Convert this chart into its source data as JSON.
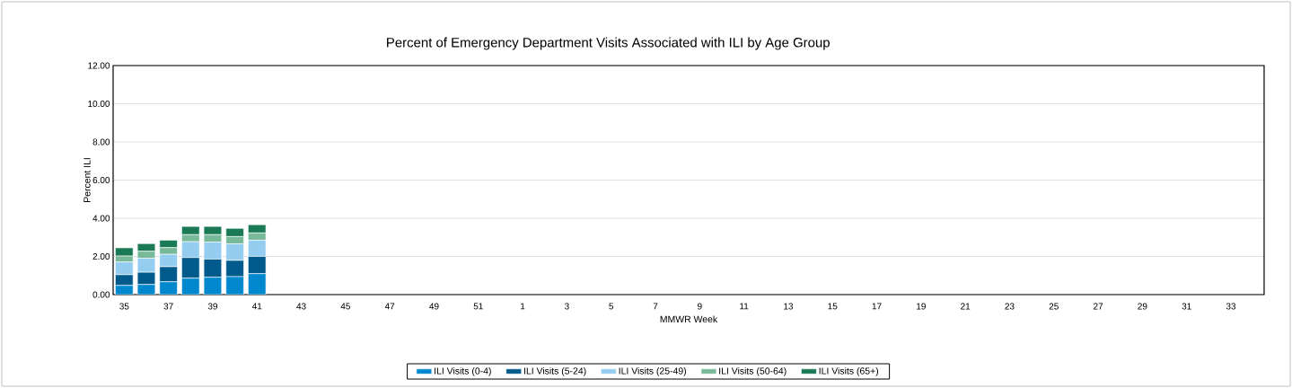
{
  "chart_data": {
    "type": "bar",
    "stacked": true,
    "title": "Percent of Emergency Department Visits Associated with ILI by Age Group",
    "xlabel": "MMWR Week",
    "ylabel": "Percent ILI",
    "categories": [
      "35",
      null,
      "37",
      null,
      "39",
      null,
      "41",
      null,
      "43",
      null,
      "45",
      null,
      "47",
      null,
      "49",
      null,
      "51",
      null,
      "1",
      null,
      "3",
      null,
      "5",
      null,
      "7",
      null,
      "9",
      null,
      "11",
      null,
      "13",
      null,
      "15",
      null,
      "17",
      null,
      "19",
      null,
      "21",
      null,
      "23",
      null,
      "25",
      null,
      "27",
      null,
      "29",
      null,
      "31",
      null,
      "33",
      null
    ],
    "series": [
      {
        "name": "ILI Visits (0-4)",
        "color": "#0088cf",
        "values": [
          0.48,
          0.53,
          0.67,
          0.86,
          0.91,
          0.94,
          1.1,
          null,
          null,
          null,
          null,
          null,
          null,
          null,
          null,
          null,
          null,
          null,
          null,
          null,
          null,
          null,
          null,
          null,
          null,
          null,
          null,
          null,
          null,
          null,
          null,
          null,
          null,
          null,
          null,
          null,
          null,
          null,
          null,
          null,
          null,
          null,
          null,
          null,
          null,
          null,
          null,
          null,
          null,
          null,
          null,
          null
        ]
      },
      {
        "name": "ILI Visits (5-24)",
        "color": "#005a8c",
        "values": [
          0.56,
          0.64,
          0.79,
          1.08,
          0.95,
          0.85,
          0.9,
          null,
          null,
          null,
          null,
          null,
          null,
          null,
          null,
          null,
          null,
          null,
          null,
          null,
          null,
          null,
          null,
          null,
          null,
          null,
          null,
          null,
          null,
          null,
          null,
          null,
          null,
          null,
          null,
          null,
          null,
          null,
          null,
          null,
          null,
          null,
          null,
          null,
          null,
          null,
          null,
          null,
          null,
          null,
          null,
          null
        ]
      },
      {
        "name": "ILI Visits (25-49)",
        "color": "#95cdf0",
        "values": [
          0.67,
          0.73,
          0.65,
          0.83,
          0.89,
          0.87,
          0.85,
          null,
          null,
          null,
          null,
          null,
          null,
          null,
          null,
          null,
          null,
          null,
          null,
          null,
          null,
          null,
          null,
          null,
          null,
          null,
          null,
          null,
          null,
          null,
          null,
          null,
          null,
          null,
          null,
          null,
          null,
          null,
          null,
          null,
          null,
          null,
          null,
          null,
          null,
          null,
          null,
          null,
          null,
          null,
          null,
          null
        ]
      },
      {
        "name": "ILI Visits (50-64)",
        "color": "#78b99a",
        "values": [
          0.31,
          0.37,
          0.35,
          0.37,
          0.39,
          0.38,
          0.38,
          null,
          null,
          null,
          null,
          null,
          null,
          null,
          null,
          null,
          null,
          null,
          null,
          null,
          null,
          null,
          null,
          null,
          null,
          null,
          null,
          null,
          null,
          null,
          null,
          null,
          null,
          null,
          null,
          null,
          null,
          null,
          null,
          null,
          null,
          null,
          null,
          null,
          null,
          null,
          null,
          null,
          null,
          null,
          null,
          null
        ]
      },
      {
        "name": "ILI Visits (65+)",
        "color": "#1b7a56",
        "values": [
          0.43,
          0.4,
          0.39,
          0.43,
          0.43,
          0.43,
          0.43,
          null,
          null,
          null,
          null,
          null,
          null,
          null,
          null,
          null,
          null,
          null,
          null,
          null,
          null,
          null,
          null,
          null,
          null,
          null,
          null,
          null,
          null,
          null,
          null,
          null,
          null,
          null,
          null,
          null,
          null,
          null,
          null,
          null,
          null,
          null,
          null,
          null,
          null,
          null,
          null,
          null,
          null,
          null,
          null,
          null
        ]
      }
    ],
    "ylim": [
      0,
      12
    ],
    "yticks": [
      {
        "value": 0,
        "label": "0.00"
      },
      {
        "value": 2,
        "label": "2.00"
      },
      {
        "value": 4,
        "label": "4.00"
      },
      {
        "value": 6,
        "label": "6.00"
      },
      {
        "value": 8,
        "label": "8.00"
      },
      {
        "value": 10,
        "label": "10.00"
      },
      {
        "value": 12,
        "label": "12.00"
      }
    ],
    "grid": "y",
    "legend": "bottom"
  }
}
